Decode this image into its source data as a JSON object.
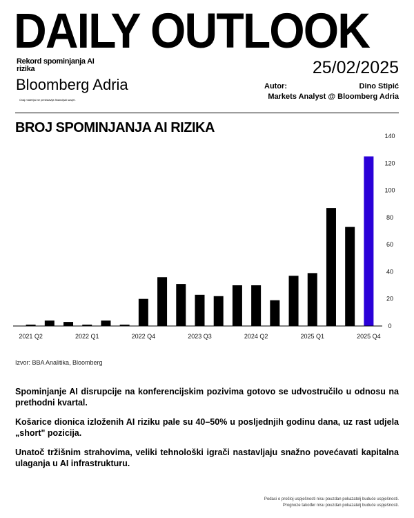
{
  "header": {
    "title": "DAILY OUTLOOK",
    "subtitle": "Rekord spominjanja AI rizika",
    "brand": "Bloomberg Adria",
    "disclaimer": "Ovaj materijal ne predstavlja financijski savjet.",
    "date": "25/02/2025",
    "author_label": "Autor:",
    "author_name": "Dino Stipić",
    "author_role": "Markets Analyst @ Bloomberg Adria"
  },
  "chart_data": {
    "type": "bar",
    "title": "BROJ SPOMINJANJA AI RIZIKA",
    "categories": [
      "2021 Q2",
      "2021 Q3",
      "2021 Q4",
      "2022 Q1",
      "2022 Q2",
      "2022 Q3",
      "2022 Q4",
      "2023 Q1",
      "2023 Q2",
      "2023 Q3",
      "2023 Q4",
      "2024 Q1",
      "2024 Q2",
      "2024 Q3",
      "2024 Q4",
      "2025 Q1",
      "2025 Q2",
      "2025 Q3",
      "2025 Q4"
    ],
    "x_tick_labels": [
      "2021 Q2",
      "2022 Q1",
      "2022 Q4",
      "2023 Q3",
      "2024 Q2",
      "2025 Q1",
      "2025 Q4"
    ],
    "values": [
      1,
      4,
      3,
      1,
      4,
      1,
      20,
      36,
      31,
      23,
      22,
      30,
      30,
      19,
      37,
      39,
      87,
      73,
      125
    ],
    "ylim": [
      0,
      140
    ],
    "y_ticks": [
      0,
      20,
      40,
      60,
      80,
      100,
      120,
      140
    ],
    "y_axis_side": "right",
    "grid": false,
    "bar_color": "#000000",
    "highlight_color": "#2a00d8",
    "highlight_index": 18
  },
  "source": "Izvor: BBA Analitika, Bloomberg",
  "paragraphs": [
    "Spominjanje AI disrupcije na konferencijskim pozivima gotovo se udvostručilo u odnosu na prethodni kvartal.",
    "Košarice dionica izloženih AI riziku pale su 40–50% u posljednjih godinu dana, uz rast udjela „short\" pozicija.",
    "Unatoč tržišnim strahovima, veliki tehnološki igrači nastavljaju snažno povećavati kapitalna ulaganja u AI infrastrukturu."
  ],
  "footer": [
    "Podaci o prošloj uspješnosti nisu pouzdan pokazatelj buduće uspješnosti.",
    "Prognoze također nisu pouzdan pokazatelj buduće uspješnosti."
  ]
}
